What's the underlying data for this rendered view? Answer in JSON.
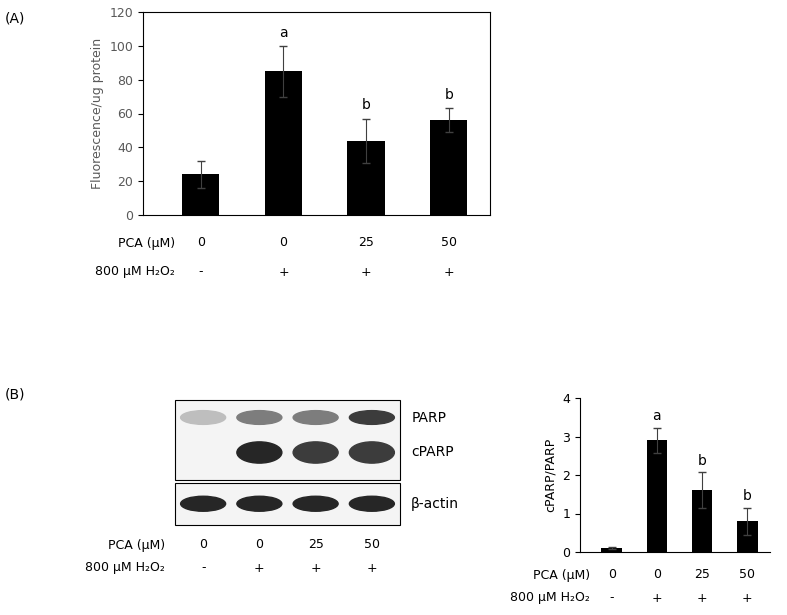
{
  "panels": [
    "(A)",
    "(B)"
  ],
  "chart_data": [
    {
      "type": "bar",
      "y_label": "Fluorescence/ug protein",
      "categories": [
        "0",
        "0",
        "25",
        "50"
      ],
      "x_rows": [
        {
          "label": "PCA (µM)",
          "values": [
            "0",
            "0",
            "25",
            "50"
          ]
        },
        {
          "label": "800 µM H₂O₂",
          "values": [
            "-",
            "+",
            "+",
            "+"
          ]
        }
      ],
      "values": [
        24,
        85,
        44,
        56
      ],
      "errors": [
        8,
        15,
        13,
        7
      ],
      "letters": [
        null,
        "a",
        "b",
        "b"
      ],
      "color": "#000000",
      "ylim": [
        0,
        120
      ],
      "yticks": [
        0,
        20,
        40,
        60,
        80,
        100,
        120
      ]
    },
    {
      "type": "bar",
      "y_label": "cPARP/PARP",
      "categories": [
        "0",
        "0",
        "25",
        "50"
      ],
      "x_rows": [
        {
          "label": "PCA (µM)",
          "values": [
            "0",
            "0",
            "25",
            "50"
          ]
        },
        {
          "label": "800 µM H₂O₂",
          "values": [
            "-",
            "+",
            "+",
            "+"
          ]
        }
      ],
      "values": [
        0.1,
        2.9,
        1.6,
        0.8
      ],
      "errors": [
        0.03,
        0.32,
        0.47,
        0.35
      ],
      "letters": [
        null,
        "a",
        "b",
        "b"
      ],
      "color": "#000000",
      "ylim": [
        0,
        4
      ],
      "yticks": [
        0,
        1,
        2,
        3,
        4
      ]
    }
  ],
  "blot": {
    "x_rows": [
      {
        "label": "PCA (µM)",
        "values": [
          "0",
          "0",
          "25",
          "50"
        ]
      },
      {
        "label": "800 µM H₂O₂",
        "values": [
          "-",
          "+",
          "+",
          "+"
        ]
      }
    ],
    "bands": [
      {
        "label": "PARP",
        "intensity": [
          0.3,
          0.6,
          0.6,
          0.9
        ]
      },
      {
        "label": "cPARP",
        "intensity": [
          0,
          1,
          0.9,
          0.9
        ]
      },
      {
        "label": "β-actin",
        "intensity": [
          1,
          1,
          1,
          1
        ]
      }
    ]
  }
}
